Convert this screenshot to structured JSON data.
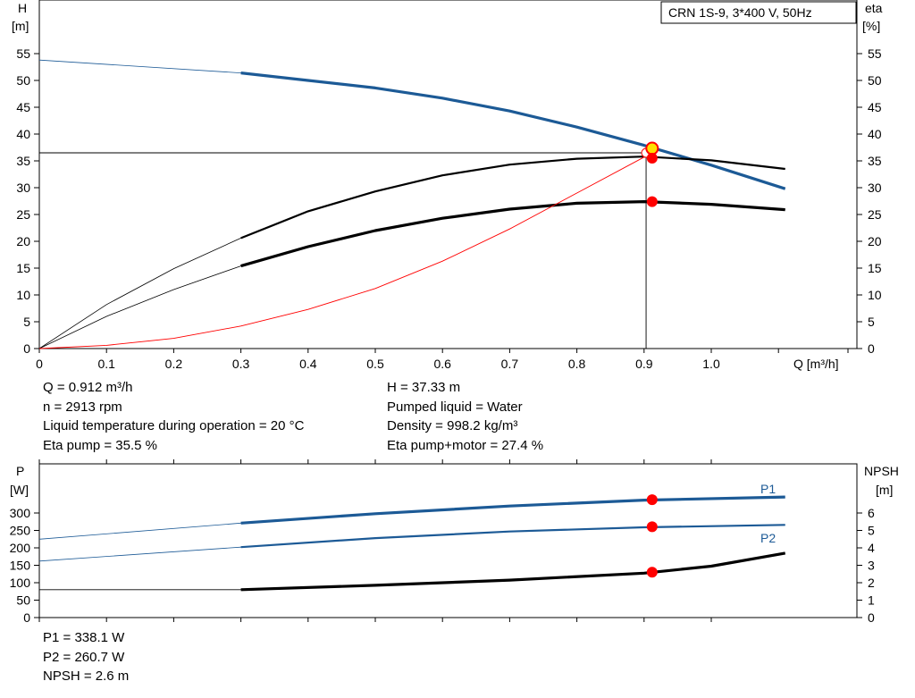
{
  "legend_box": "CRN 1S-9, 3*400 V, 50Hz",
  "top_chart": {
    "left_axis_title": "H",
    "left_axis_unit": "[m]",
    "right_axis_title": "eta",
    "right_axis_unit": "[%]",
    "x_axis_label": "Q [m³/h]"
  },
  "bottom_chart": {
    "left_axis_title": "P",
    "left_axis_unit": "[W]",
    "right_axis_title": "NPSH",
    "right_axis_unit": "[m]"
  },
  "info_top": {
    "q": "Q = 0.912 m³/h",
    "h": "H = 37.33 m",
    "n": "n = 2913 rpm",
    "liquid": "Pumped liquid = Water",
    "temp": "Liquid temperature during operation = 20 °C",
    "density": "Density = 998.2 kg/m³",
    "eta_pump": "Eta pump = 35.5 %",
    "eta_total": "Eta pump+motor = 27.4 %"
  },
  "info_bottom": {
    "p1": "P1 = 338.1 W",
    "p2": "P2 = 260.7 W",
    "npsh": "NPSH = 2.6 m"
  },
  "colors": {
    "blue": "#1c5a96",
    "black": "#000000",
    "red": "#ff0000",
    "yellow": "#ffe000",
    "grid": "#000000"
  },
  "chart_data": [
    {
      "type": "line",
      "xlabel": "Q [m³/h]",
      "ylabel": "H [m]",
      "y2label": "eta [%]",
      "xlim": [
        0,
        1.2
      ],
      "ylim": [
        0,
        60
      ],
      "y2lim": [
        0,
        60
      ],
      "x_ticks": [
        0,
        0.1,
        0.2,
        0.3,
        0.4,
        0.5,
        0.6,
        0.7,
        0.8,
        0.9,
        1.0
      ],
      "x_tick_labels": [
        "0",
        "0.1",
        "0.2",
        "0.3",
        "0.4",
        "0.5",
        "0.6",
        "0.7",
        "0.8",
        "0.9",
        "1.0"
      ],
      "y_ticks": [
        0,
        5,
        10,
        15,
        20,
        25,
        30,
        35,
        40,
        45,
        50,
        55
      ],
      "operating_point": {
        "x": 0.912,
        "H": 37.33,
        "eta_pump": 35.5,
        "eta_total": 27.4
      },
      "series": [
        {
          "role": "H",
          "color": "#1c5a96",
          "x": [
            0,
            0.3,
            0.4,
            0.5,
            0.6,
            0.7,
            0.8,
            0.9,
            1.0,
            1.11
          ],
          "y": [
            53.8,
            51.4,
            50.0,
            48.6,
            46.7,
            44.3,
            41.3,
            37.9,
            34.2,
            29.8
          ],
          "thin_until": 0.3
        },
        {
          "role": "eta_pump",
          "color": "#000000",
          "x": [
            0,
            0.1,
            0.2,
            0.3,
            0.4,
            0.5,
            0.6,
            0.7,
            0.8,
            0.9,
            1.0,
            1.11
          ],
          "y": [
            0,
            8.2,
            14.9,
            20.6,
            25.6,
            29.3,
            32.3,
            34.3,
            35.4,
            35.8,
            35.1,
            33.5
          ],
          "thin_until": 0.3
        },
        {
          "role": "eta_total",
          "color": "#000000",
          "x": [
            0,
            0.1,
            0.2,
            0.3,
            0.4,
            0.5,
            0.6,
            0.7,
            0.8,
            0.9,
            1.0,
            1.11
          ],
          "y": [
            0,
            6.0,
            11.0,
            15.4,
            19.0,
            22.0,
            24.3,
            26.0,
            27.1,
            27.4,
            26.9,
            25.9
          ],
          "thin_until": 0.3
        },
        {
          "role": "system_curve",
          "color": "#ff0000",
          "x": [
            0,
            0.1,
            0.2,
            0.3,
            0.4,
            0.5,
            0.6,
            0.7,
            0.8,
            0.9,
            0.912
          ],
          "y": [
            0,
            0.6,
            1.9,
            4.2,
            7.3,
            11.2,
            16.3,
            22.3,
            29.0,
            35.7,
            36.5
          ]
        }
      ]
    },
    {
      "type": "line",
      "ylabel": "P [W]",
      "y2label": "NPSH [m]",
      "xlim": [
        0,
        1.2
      ],
      "ylim": [
        0,
        350
      ],
      "y2lim": [
        0,
        7
      ],
      "y_ticks": [
        0,
        50,
        100,
        150,
        200,
        250,
        300
      ],
      "y2_ticks": [
        0,
        1,
        2,
        3,
        4,
        5,
        6
      ],
      "operating_point": {
        "x": 0.912,
        "P1": 338.1,
        "P2": 260.7,
        "NPSH": 2.6
      },
      "series": [
        {
          "name": "P1",
          "color": "#1c5a96",
          "axis": "left",
          "x": [
            0,
            0.3,
            0.5,
            0.7,
            0.9,
            1.11
          ],
          "y": [
            225,
            271,
            298,
            320,
            337,
            346
          ],
          "thin_until": 0.3
        },
        {
          "name": "P2",
          "color": "#1c5a96",
          "axis": "left",
          "x": [
            0,
            0.3,
            0.5,
            0.7,
            0.9,
            1.11
          ],
          "y": [
            162,
            202,
            228,
            247,
            259,
            266
          ],
          "thin_until": 0.3
        },
        {
          "role": "NPSH",
          "color": "#000000",
          "axis": "right",
          "x": [
            0,
            0.3,
            0.5,
            0.7,
            0.9,
            1.0,
            1.11
          ],
          "y": [
            1.6,
            1.6,
            1.85,
            2.15,
            2.55,
            2.95,
            3.7
          ],
          "thin_until": 0.3
        }
      ]
    }
  ]
}
